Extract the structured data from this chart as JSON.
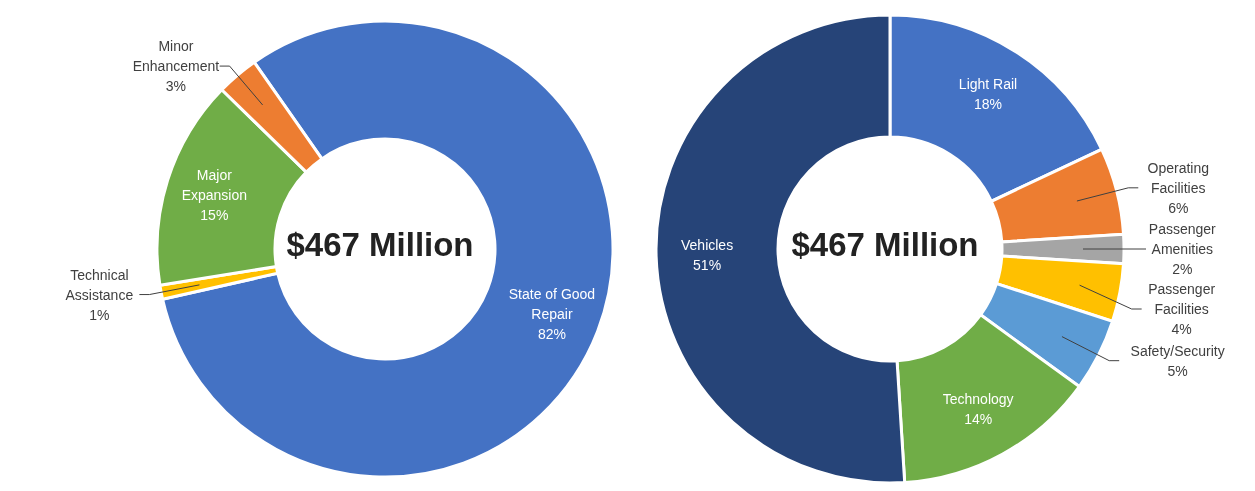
{
  "chart_data": [
    {
      "type": "donut",
      "categories": [
        "State of Good Repair",
        "Technical Assistance",
        "Major Expansion",
        "Minor Enhancement"
      ],
      "values": [
        82,
        1,
        15,
        3
      ],
      "colors": [
        "#4472c4",
        "#ffc000",
        "#70ad47",
        "#ed7d31"
      ],
      "value_labels": [
        "82%",
        "1%",
        "15%",
        "3%"
      ],
      "annotations": [
        "$467 Million"
      ]
    },
    {
      "type": "donut",
      "categories": [
        "Light Rail",
        "Operating Facilities",
        "Passenger Amenities",
        "Passenger Facilities",
        "Safety/Security",
        "Technology",
        "Vehicles"
      ],
      "values": [
        18,
        6,
        2,
        4,
        5,
        14,
        51
      ],
      "colors": [
        "#4472c4",
        "#ed7d31",
        "#a5a5a5",
        "#ffc000",
        "#5b9bd5",
        "#70ad47",
        "#264478"
      ],
      "value_labels": [
        "18%",
        "6%",
        "2%",
        "4%",
        "5%",
        "14%",
        "51%"
      ],
      "annotations": [
        "$467 Million"
      ]
    }
  ]
}
